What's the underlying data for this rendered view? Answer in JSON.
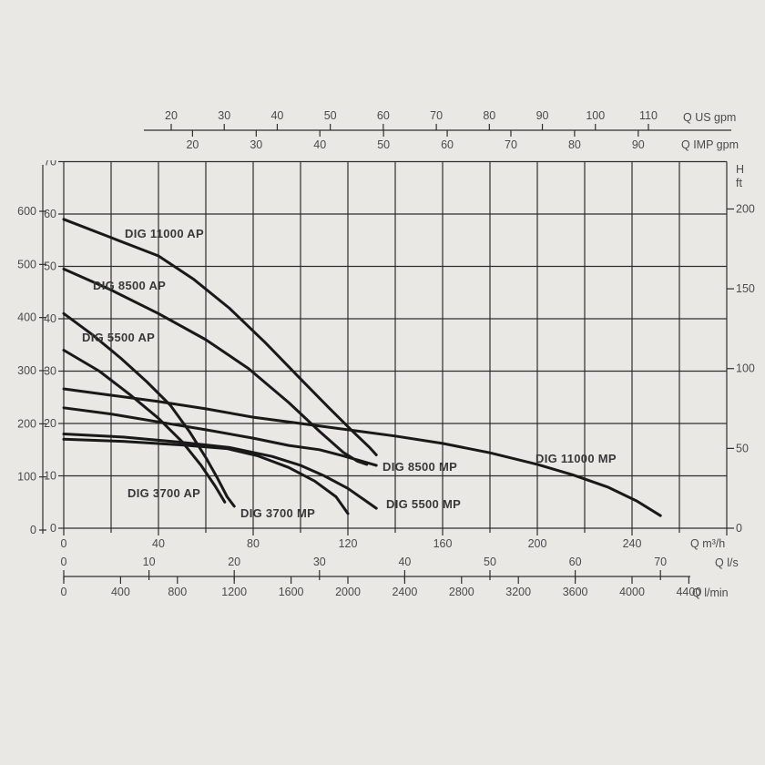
{
  "colors": {
    "background": "#e9e8e5",
    "grid": "#2e2e2e",
    "axis": "#3a3a3a",
    "curve": "#191919",
    "text": "#4a4a4a",
    "curve_label_text": "#383838"
  },
  "top_axes": {
    "us": {
      "unit": "Q US gpm",
      "ticks": [
        20,
        30,
        40,
        50,
        60,
        70,
        80,
        90,
        100,
        110
      ]
    },
    "imp": {
      "unit": "Q IMP gpm",
      "ticks": [
        20,
        30,
        40,
        50,
        60,
        70,
        80,
        90
      ]
    }
  },
  "left_axes": {
    "outer": {
      "ticks": [
        600,
        500,
        400,
        300,
        200,
        100,
        0
      ]
    },
    "inner": {
      "ticks": [
        70,
        60,
        50,
        40,
        30,
        20,
        10,
        0
      ],
      "top_tick_clipped": 70
    }
  },
  "right_axis": {
    "name": "H",
    "unit": "ft",
    "ticks": [
      200,
      150,
      100,
      50,
      0
    ]
  },
  "bottom_axes": {
    "m3h": {
      "unit": "Q m³/h",
      "ticks": [
        0,
        40,
        80,
        120,
        160,
        200,
        240
      ]
    },
    "ls": {
      "unit": "Q l/s",
      "ticks": [
        0,
        10,
        20,
        30,
        40,
        50,
        60,
        70
      ]
    },
    "lmin": {
      "unit": "Q l/min",
      "ticks": [
        0,
        400,
        800,
        1200,
        1600,
        2000,
        2400,
        2800,
        3200,
        3600,
        4000,
        4400
      ]
    }
  },
  "chart_data": {
    "type": "line",
    "xlabel": "Q m³/h",
    "ylabel": "H",
    "x_range_m3h": [
      0,
      280
    ],
    "y_range_inner": [
      0,
      70
    ],
    "grid": "on",
    "series": [
      {
        "label": "DIG 11000 AP",
        "points": [
          [
            0,
            59
          ],
          [
            20,
            55.5
          ],
          [
            40,
            52
          ],
          [
            55,
            47.5
          ],
          [
            70,
            42
          ],
          [
            85,
            35.5
          ],
          [
            100,
            28.5
          ],
          [
            112,
            23
          ],
          [
            122,
            18.5
          ],
          [
            129,
            15.5
          ],
          [
            132,
            14
          ]
        ]
      },
      {
        "label": "DIG 8500 AP",
        "points": [
          [
            0,
            49.5
          ],
          [
            20,
            45.5
          ],
          [
            40,
            41
          ],
          [
            60,
            36
          ],
          [
            78,
            30.5
          ],
          [
            95,
            24
          ],
          [
            108,
            18.5
          ],
          [
            118,
            14.5
          ],
          [
            124,
            12.8
          ],
          [
            128,
            12.2
          ]
        ]
      },
      {
        "label": "DIG 5500 AP",
        "points": [
          [
            0,
            41
          ],
          [
            12,
            37
          ],
          [
            24,
            32.5
          ],
          [
            35,
            28
          ],
          [
            45,
            23.5
          ],
          [
            53,
            18.5
          ],
          [
            60,
            13.5
          ],
          [
            65,
            9.5
          ],
          [
            69,
            6
          ],
          [
            72,
            4.2
          ]
        ]
      },
      {
        "label": "DIG 3700 AP",
        "points": [
          [
            0,
            34
          ],
          [
            15,
            30
          ],
          [
            28,
            25.5
          ],
          [
            40,
            21
          ],
          [
            50,
            16.5
          ],
          [
            58,
            12
          ],
          [
            64,
            8
          ],
          [
            68,
            5
          ]
        ]
      },
      {
        "label": "DIG 11000 MP",
        "points": [
          [
            0,
            26.6
          ],
          [
            20,
            25.4
          ],
          [
            40,
            24.2
          ],
          [
            60,
            22.8
          ],
          [
            80,
            21.2
          ],
          [
            100,
            20
          ],
          [
            120,
            18.8
          ],
          [
            140,
            17.6
          ],
          [
            160,
            16.2
          ],
          [
            180,
            14.4
          ],
          [
            200,
            12.2
          ],
          [
            215,
            10.2
          ],
          [
            230,
            7.8
          ],
          [
            242,
            5.2
          ],
          [
            252,
            2.4
          ]
        ]
      },
      {
        "label": "DIG 8500 MP",
        "points": [
          [
            0,
            23
          ],
          [
            20,
            21.8
          ],
          [
            40,
            20.3
          ],
          [
            60,
            18.8
          ],
          [
            80,
            17.2
          ],
          [
            95,
            15.8
          ],
          [
            108,
            15
          ],
          [
            118,
            13.8
          ],
          [
            126,
            12.8
          ],
          [
            132,
            12
          ]
        ]
      },
      {
        "label": "DIG 5500 MP",
        "points": [
          [
            0,
            18
          ],
          [
            25,
            17.4
          ],
          [
            50,
            16.4
          ],
          [
            70,
            15.4
          ],
          [
            88,
            13.7
          ],
          [
            100,
            12
          ],
          [
            110,
            10
          ],
          [
            120,
            7.6
          ],
          [
            127,
            5.4
          ],
          [
            132,
            3.8
          ]
        ]
      },
      {
        "label": "DIG 3700 MP",
        "points": [
          [
            0,
            17
          ],
          [
            25,
            16.6
          ],
          [
            50,
            15.9
          ],
          [
            69,
            15.2
          ],
          [
            82,
            13.8
          ],
          [
            95,
            11.6
          ],
          [
            106,
            9
          ],
          [
            115,
            6
          ],
          [
            120,
            2.8
          ]
        ]
      }
    ]
  }
}
